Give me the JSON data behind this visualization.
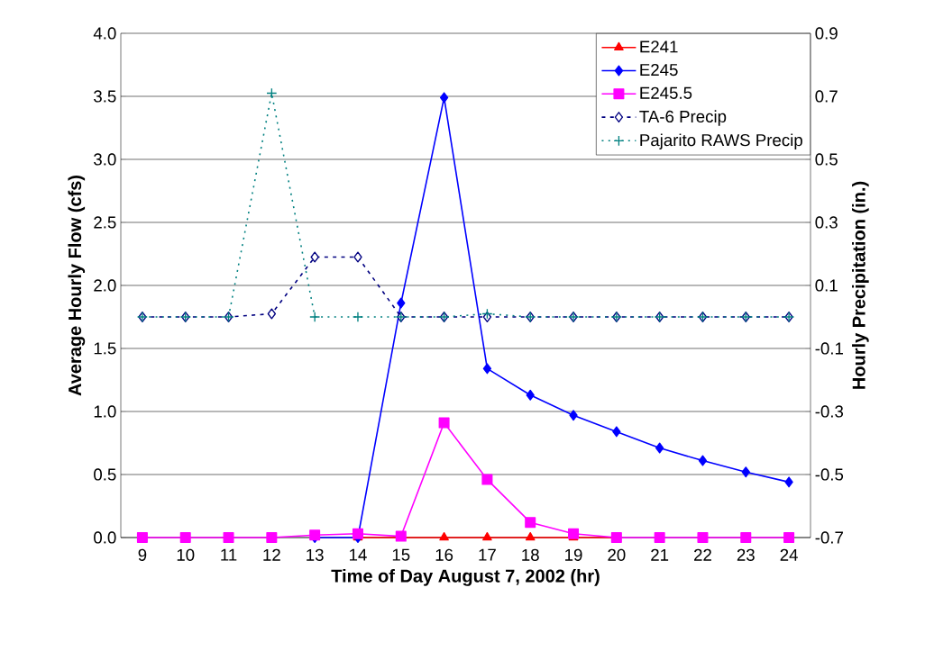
{
  "chart_data": {
    "type": "line",
    "xlabel": "Time of Day August 7, 2002 (hr)",
    "ylabel": "Average Hourly Flow (cfs)",
    "y2label": "Hourly Precipitation (in.)",
    "categories": [
      "9",
      "10",
      "11",
      "12",
      "13",
      "14",
      "15",
      "16",
      "17",
      "18",
      "19",
      "20",
      "21",
      "22",
      "23",
      "24"
    ],
    "ylim": [
      0,
      4
    ],
    "yticks": [
      {
        "value": 0,
        "label": "0.0"
      },
      {
        "value": 0.5,
        "label": "0.5"
      },
      {
        "value": 1,
        "label": "1.0"
      },
      {
        "value": 1.5,
        "label": "1.5"
      },
      {
        "value": 2,
        "label": "2.0"
      },
      {
        "value": 2.5,
        "label": "2.5"
      },
      {
        "value": 3,
        "label": "3.0"
      },
      {
        "value": 3.5,
        "label": "3.5"
      },
      {
        "value": 4,
        "label": "4.0"
      }
    ],
    "y2lim": [
      -0.7,
      0.9
    ],
    "y2ticks": [
      -0.7,
      -0.5,
      -0.3,
      -0.1,
      0.1,
      0.3,
      0.5,
      0.7,
      0.9
    ],
    "grid": "y",
    "legend": "top right",
    "series": [
      {
        "name": "E241",
        "color": "#ff0000",
        "marker": "triangle",
        "line_style": "solid",
        "values": [
          null,
          null,
          null,
          null,
          null,
          0,
          0,
          0,
          0,
          0,
          0,
          0,
          null,
          null,
          null,
          null
        ]
      },
      {
        "name": "E245",
        "color": "#0000ff",
        "marker": "diamond",
        "line_style": "solid",
        "values": [
          null,
          null,
          null,
          null,
          0,
          0,
          1.86,
          3.49,
          1.34,
          1.13,
          0.97,
          0.84,
          0.71,
          0.61,
          0.52,
          0.44
        ]
      },
      {
        "name": "E245.5",
        "color": "#ff00ff",
        "marker": "square",
        "line_style": "solid",
        "values": [
          0,
          0,
          0,
          0,
          0.02,
          0.03,
          0.01,
          0.91,
          0.46,
          0.12,
          0.03,
          0,
          0,
          0,
          0,
          0
        ]
      },
      {
        "name": "TA-6 Precip",
        "color": "#000080",
        "marker": "diamond",
        "line_style": "dashed",
        "axis": "y2",
        "values": [
          0,
          0,
          0,
          0.01,
          0.19,
          0.19,
          0,
          0,
          0,
          0,
          0,
          0,
          0,
          0,
          0,
          0
        ]
      },
      {
        "name": "Pajarito RAWS Precip",
        "color": "#008080",
        "marker": "cross",
        "line_style": "dotted",
        "axis": "y2",
        "values": [
          0,
          0,
          0,
          0.71,
          0,
          0,
          0,
          0,
          0.01,
          0,
          0,
          0,
          0,
          0,
          0,
          0
        ]
      }
    ]
  }
}
